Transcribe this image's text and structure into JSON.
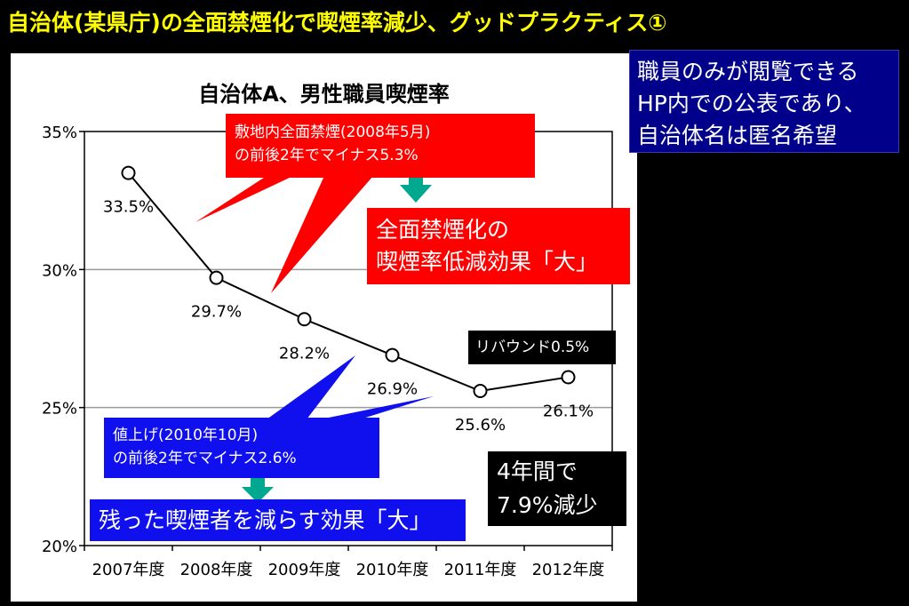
{
  "slide_title": "自治体(某県庁)の全面禁煙化で喫煙率減少、グッドプラクティス①",
  "note": {
    "lines": [
      "職員のみが閲覧できる",
      "HP内での公表であり、",
      "自治体名は匿名希望"
    ]
  },
  "callouts": {
    "red1": [
      "敷地内全面禁煙(2008年5月)",
      "の前後2年でマイナス5.3%"
    ],
    "red2": [
      "全面禁煙化の",
      "喫煙率低減効果「大」"
    ],
    "blue1": [
      "値上げ(2010年10月)",
      "の前後2年でマイナス2.6%"
    ],
    "blue2": "残った喫煙者を減らす効果「大」",
    "rebound": "リバウンド0.5%",
    "summary": [
      "4年間で",
      "7.9%減少"
    ]
  },
  "colors": {
    "title": "#ffff00",
    "red": "#ff0000",
    "blue": "#1010ee",
    "navy": "#00008b",
    "teal_arrow": "#00a88f"
  },
  "chart_data": {
    "type": "line",
    "title": "自治体A、男性職員喫煙率",
    "categories": [
      "2007年度",
      "2008年度",
      "2009年度",
      "2010年度",
      "2011年度",
      "2012年度"
    ],
    "values": [
      33.5,
      29.7,
      28.2,
      26.9,
      25.6,
      26.1
    ],
    "data_labels": [
      "33.5%",
      "29.7%",
      "28.2%",
      "26.9%",
      "25.6%",
      "26.1%"
    ],
    "y_ticks": [
      20,
      25,
      30,
      35
    ],
    "y_tick_labels": [
      "20%",
      "25%",
      "30%",
      "35%"
    ],
    "ylim": [
      20,
      35
    ],
    "grid": true,
    "legend": "none"
  }
}
